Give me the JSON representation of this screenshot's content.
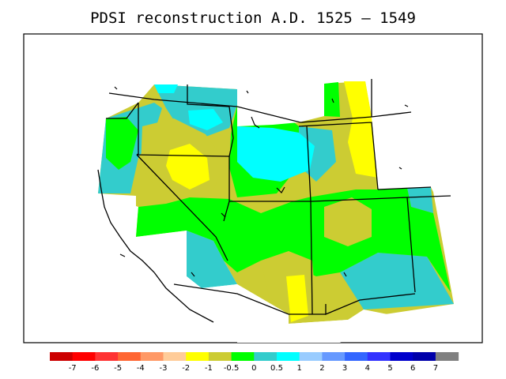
{
  "title": "PDSI reconstruction A.D. 1525 – 1549",
  "colorbar": {
    "colors": [
      "#cc0000",
      "#ff0000",
      "#ff3333",
      "#ff6633",
      "#ff9966",
      "#ffcc99",
      "#ffff00",
      "#cccc33",
      "#00ff00",
      "#33cccc",
      "#00ffff",
      "#99ccff",
      "#6699ff",
      "#3366ff",
      "#3333ff",
      "#0000cc",
      "#0000aa",
      "#808080"
    ],
    "labels": [
      "-7",
      "-6",
      "-5",
      "-4",
      "-3",
      "-2",
      "-1",
      "-0.5",
      "0",
      "0.5",
      "1",
      "2",
      "3",
      "4",
      "5",
      "6",
      "7"
    ]
  },
  "legend_colors": {
    "-1": "#ffff00",
    "-0.5": "#cccc33",
    "0": "#00ff00",
    "0.5": "#33cccc",
    "1": "#00ffff"
  }
}
